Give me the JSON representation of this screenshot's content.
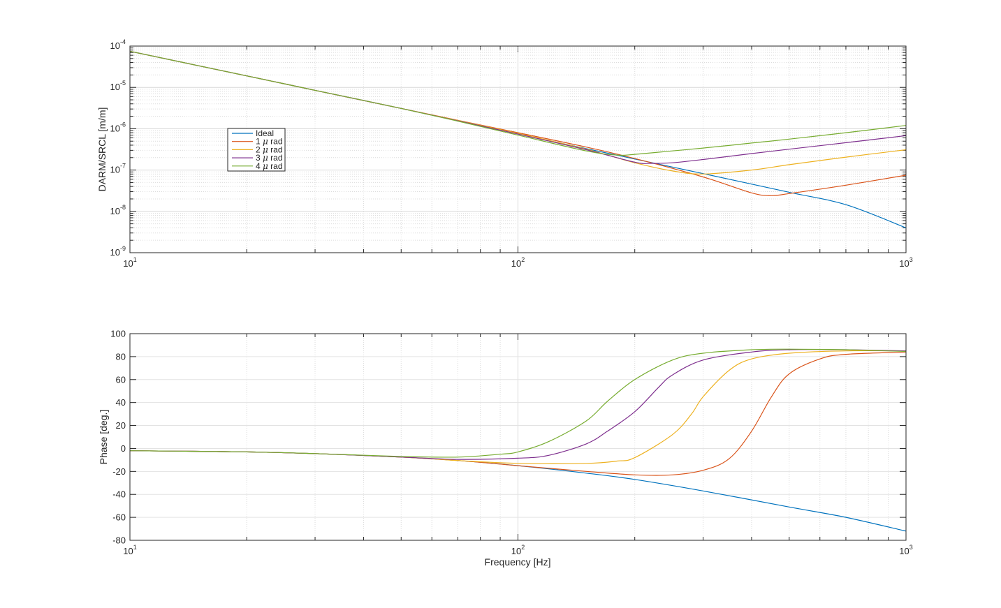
{
  "chart_data": [
    {
      "type": "line",
      "panel": "magnitude",
      "xlabel": "",
      "ylabel": "DARM/SRCL [m/m]",
      "xscale": "log",
      "yscale": "log",
      "xlim": [
        10,
        1000
      ],
      "ylim": [
        1e-09,
        0.0001
      ],
      "grid": true,
      "minor_grid": true,
      "x_ticks": [
        {
          "value": 10,
          "base": "10",
          "exp": "1"
        },
        {
          "value": 100,
          "base": "10",
          "exp": "2"
        },
        {
          "value": 1000,
          "base": "10",
          "exp": "3"
        }
      ],
      "y_ticks": [
        {
          "value": 0.0001,
          "base": "10",
          "exp": "-4"
        },
        {
          "value": 1e-05,
          "base": "10",
          "exp": "-5"
        },
        {
          "value": 1e-06,
          "base": "10",
          "exp": "-6"
        },
        {
          "value": 1e-07,
          "base": "10",
          "exp": "-7"
        },
        {
          "value": 1e-08,
          "base": "10",
          "exp": "-8"
        },
        {
          "value": 1e-09,
          "base": "10",
          "exp": "-9"
        }
      ],
      "legend": {
        "placement": "center-left",
        "entries": [
          {
            "prefix": "Ideal",
            "mu": "",
            "suffix": ""
          },
          {
            "prefix": "1 ",
            "mu": "μ",
            "suffix": " rad"
          },
          {
            "prefix": "2 ",
            "mu": "μ",
            "suffix": " rad"
          },
          {
            "prefix": "3 ",
            "mu": "μ",
            "suffix": " rad"
          },
          {
            "prefix": "4 ",
            "mu": "μ",
            "suffix": " rad"
          }
        ]
      },
      "series": [
        {
          "color": "#0072BD",
          "x": [
            10,
            20,
            30,
            50,
            70,
            100,
            150,
            200,
            300,
            500,
            700,
            1000
          ],
          "y": [
            7.5e-05,
            1.9e-05,
            8.5e-06,
            3.1e-06,
            1.55e-06,
            7.5e-07,
            3.3e-07,
            1.85e-07,
            8.2e-08,
            2.9e-08,
            1.45e-08,
            4e-09
          ]
        },
        {
          "color": "#D95319",
          "x": [
            10,
            20,
            30,
            50,
            70,
            100,
            150,
            200,
            300,
            400,
            450,
            500,
            700,
            1000
          ],
          "y": [
            7.5e-05,
            1.9e-05,
            8.5e-06,
            3.1e-06,
            1.6e-06,
            8e-07,
            3.6e-07,
            1.9e-07,
            6.8e-08,
            2.8e-08,
            2.4e-08,
            2.7e-08,
            4.3e-08,
            7.5e-08
          ]
        },
        {
          "color": "#EDB120",
          "x": [
            10,
            20,
            30,
            50,
            70,
            100,
            150,
            200,
            250,
            300,
            400,
            500,
            700,
            1000
          ],
          "y": [
            7.5e-05,
            1.9e-05,
            8.5e-06,
            3.1e-06,
            1.58e-06,
            7.7e-07,
            3.2e-07,
            1.5e-07,
            9.5e-08,
            8e-08,
            1e-07,
            1.35e-07,
            2.05e-07,
            3.1e-07
          ]
        },
        {
          "color": "#7E2F8E",
          "x": [
            10,
            20,
            30,
            50,
            70,
            100,
            150,
            200,
            220,
            250,
            300,
            400,
            500,
            700,
            1000
          ],
          "y": [
            7.5e-05,
            1.9e-05,
            8.5e-06,
            3.1e-06,
            1.55e-06,
            7.4e-07,
            3.1e-07,
            1.55e-07,
            1.45e-07,
            1.5e-07,
            1.8e-07,
            2.5e-07,
            3.2e-07,
            4.6e-07,
            6.8e-07
          ]
        },
        {
          "color": "#77AC30",
          "x": [
            10,
            20,
            30,
            50,
            70,
            100,
            150,
            180,
            200,
            250,
            300,
            400,
            500,
            700,
            1000
          ],
          "y": [
            7.5e-05,
            1.9e-05,
            8.5e-06,
            3.1e-06,
            1.52e-06,
            7e-07,
            2.9e-07,
            2.3e-07,
            2.4e-07,
            2.9e-07,
            3.4e-07,
            4.5e-07,
            5.6e-07,
            8e-07,
            1.2e-06
          ]
        }
      ]
    },
    {
      "type": "line",
      "panel": "phase",
      "xlabel": "Frequency [Hz]",
      "ylabel": "Phase [deg.]",
      "xscale": "log",
      "yscale": "linear",
      "xlim": [
        10,
        1000
      ],
      "ylim": [
        -80,
        100
      ],
      "grid": true,
      "minor_grid": true,
      "x_ticks": [
        {
          "value": 10,
          "base": "10",
          "exp": "1"
        },
        {
          "value": 100,
          "base": "10",
          "exp": "2"
        },
        {
          "value": 1000,
          "base": "10",
          "exp": "3"
        }
      ],
      "y_ticks": [
        {
          "value": 100,
          "label": "100"
        },
        {
          "value": 80,
          "label": "80"
        },
        {
          "value": 60,
          "label": "60"
        },
        {
          "value": 40,
          "label": "40"
        },
        {
          "value": 20,
          "label": "20"
        },
        {
          "value": 0,
          "label": "0"
        },
        {
          "value": -20,
          "label": "-20"
        },
        {
          "value": -40,
          "label": "-40"
        },
        {
          "value": -60,
          "label": "-60"
        },
        {
          "value": -80,
          "label": "-80"
        }
      ],
      "series": [
        {
          "color": "#0072BD",
          "x": [
            10,
            20,
            30,
            50,
            70,
            100,
            150,
            200,
            300,
            500,
            700,
            1000
          ],
          "y": [
            -2,
            -3,
            -4.5,
            -7.5,
            -10.5,
            -15,
            -21.5,
            -27,
            -37,
            -51,
            -60,
            -72
          ]
        },
        {
          "color": "#D95319",
          "x": [
            10,
            20,
            30,
            50,
            70,
            100,
            150,
            200,
            250,
            300,
            350,
            400,
            450,
            500,
            600,
            700,
            1000
          ],
          "y": [
            -2,
            -3,
            -4.5,
            -7.5,
            -10.5,
            -15,
            -20,
            -23,
            -23,
            -19,
            -9,
            15,
            45,
            65,
            78,
            82,
            84
          ]
        },
        {
          "color": "#EDB120",
          "x": [
            10,
            20,
            30,
            50,
            70,
            100,
            150,
            180,
            200,
            250,
            280,
            300,
            350,
            400,
            500,
            700,
            1000
          ],
          "y": [
            -2,
            -3,
            -4.5,
            -7.5,
            -10.5,
            -13,
            -13,
            -11,
            -8,
            12,
            30,
            45,
            68,
            78,
            83,
            85,
            85
          ]
        },
        {
          "color": "#7E2F8E",
          "x": [
            10,
            20,
            30,
            50,
            70,
            100,
            120,
            150,
            170,
            200,
            230,
            250,
            300,
            400,
            500,
            700,
            1000
          ],
          "y": [
            -2,
            -3,
            -4.5,
            -7.5,
            -9.5,
            -8.5,
            -6,
            4,
            15,
            32,
            53,
            64,
            77,
            84,
            86,
            86,
            85
          ]
        },
        {
          "color": "#77AC30",
          "x": [
            10,
            20,
            30,
            50,
            70,
            90,
            100,
            120,
            150,
            170,
            200,
            250,
            300,
            400,
            500,
            700,
            1000
          ],
          "y": [
            -2,
            -3,
            -4.5,
            -7,
            -7.5,
            -5,
            -3,
            6,
            24,
            41,
            60,
            77,
            83,
            86,
            86.5,
            86,
            84.5
          ]
        }
      ]
    }
  ]
}
